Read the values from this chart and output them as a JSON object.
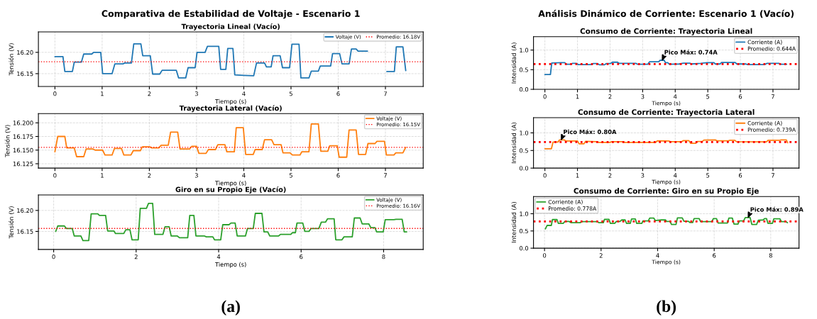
{
  "chart_data": [
    {
      "type": "line",
      "title": "Trayectoria Lineal (Vacío)",
      "xlabel": "Tiempo (s)",
      "ylabel": "Tensión (V)",
      "xlim": [
        -0.35,
        7.8
      ],
      "ylim": [
        16.12,
        16.248
      ],
      "xticks": [
        0,
        1,
        2,
        3,
        4,
        5,
        6,
        7
      ],
      "yticks": [
        {
          "value": 16.15,
          "label": "16.15"
        },
        {
          "value": 16.2,
          "label": "16.20"
        }
      ],
      "grid": true,
      "legend": "top right",
      "annotations": [
        "Comparativa de Estabilidad de Voltaje - Escenario 1",
        "(a)"
      ],
      "ref_lines": [
        {
          "axis": "y",
          "value": 16.178,
          "label": "Promedio: 16.18V",
          "color": "#ff0000",
          "line_style": "dotted"
        }
      ],
      "series": [
        {
          "name": "Voltaje (V)",
          "color": "#1f77b4",
          "x": [
            0,
            0.17,
            0.21,
            0.37,
            0.41,
            0.56,
            0.61,
            0.78,
            0.82,
            0.97,
            1.01,
            1.21,
            1.27,
            1.44,
            1.48,
            1.62,
            1.67,
            1.82,
            1.86,
            2.02,
            2.07,
            2.22,
            2.27,
            2.57,
            2.62,
            2.77,
            2.82,
            2.97,
            3.01,
            3.18,
            3.23,
            3.47,
            3.51,
            3.62,
            3.66,
            3.77,
            3.81,
            4.0,
            4.21,
            4.27,
            4.44,
            4.48,
            4.58,
            4.62,
            4.77,
            4.82,
            4.97,
            5.02,
            5.17,
            5.21,
            5.38,
            5.43,
            5.58,
            5.62,
            5.84,
            5.88,
            6.03,
            6.08,
            6.23,
            6.28,
            6.38,
            6.42,
            6.62,
            6.66,
            6.98,
            7.03,
            7.19,
            7.23,
            7.37,
            7.43
          ],
          "values": [
            16.19,
            16.19,
            16.155,
            16.155,
            16.177,
            16.177,
            16.196,
            16.196,
            16.2,
            16.2,
            16.15,
            16.15,
            16.173,
            16.173,
            16.175,
            16.175,
            16.22,
            16.22,
            16.192,
            16.192,
            16.149,
            16.149,
            16.158,
            16.158,
            16.14,
            16.14,
            16.164,
            16.164,
            16.2,
            16.2,
            16.214,
            16.214,
            16.16,
            16.16,
            16.209,
            16.209,
            16.147,
            16.146,
            16.145,
            16.175,
            16.175,
            16.166,
            16.166,
            16.192,
            16.192,
            16.164,
            16.164,
            16.219,
            16.219,
            16.14,
            16.14,
            16.156,
            16.156,
            16.168,
            16.168,
            16.197,
            16.197,
            16.173,
            16.173,
            16.208,
            16.208,
            16.203,
            16.203,
            null,
            null,
            16.155,
            16.155,
            16.213,
            16.213,
            16.157
          ]
        }
      ]
    },
    {
      "type": "line",
      "title": "Trayectoria Lateral (Vacío)",
      "xlabel": "Tiempo (s)",
      "ylabel": "Tensión (V)",
      "xlim": [
        -0.35,
        7.8
      ],
      "ylim": [
        16.117,
        16.217
      ],
      "xticks": [
        0,
        1,
        2,
        3,
        4,
        5,
        6,
        7
      ],
      "yticks": [
        16.125,
        {
          "value": 16.15,
          "label": "16.150"
        },
        16.175,
        {
          "value": 16.2,
          "label": "16.200"
        }
      ],
      "grid": true,
      "legend": "top right",
      "ref_lines": [
        {
          "axis": "y",
          "value": 16.155,
          "label": "Promedio: 16.15V",
          "color": "#ff0000",
          "line_style": "dotted"
        }
      ],
      "series": [
        {
          "name": "Voltaje (V)",
          "color": "#ff7f0e",
          "x": [
            0,
            0.06,
            0.21,
            0.25,
            0.41,
            0.46,
            0.61,
            0.66,
            0.81,
            0.85,
            1.01,
            1.06,
            1.21,
            1.26,
            1.41,
            1.46,
            1.61,
            1.66,
            1.81,
            1.85,
            2.01,
            2.05,
            2.2,
            2.25,
            2.4,
            2.45,
            2.6,
            2.65,
            2.85,
            2.9,
            3.0,
            3.05,
            3.2,
            3.25,
            3.4,
            3.45,
            3.6,
            3.64,
            3.8,
            3.84,
            3.99,
            4.04,
            4.2,
            4.24,
            4.39,
            4.44,
            4.59,
            4.64,
            4.79,
            4.83,
            4.98,
            5.03,
            5.19,
            5.23,
            5.38,
            5.43,
            5.58,
            5.63,
            5.78,
            5.82,
            5.98,
            6.02,
            6.18,
            6.23,
            6.38,
            6.43,
            6.58,
            6.63,
            6.78,
            6.82,
            6.98,
            7.02,
            7.18,
            7.22,
            7.37,
            7.43
          ],
          "values": [
            16.147,
            16.175,
            16.175,
            16.154,
            16.154,
            16.138,
            16.138,
            16.152,
            16.152,
            16.15,
            16.15,
            16.141,
            16.141,
            16.153,
            16.153,
            16.141,
            16.141,
            16.149,
            16.149,
            16.156,
            16.156,
            16.154,
            16.154,
            16.159,
            16.159,
            16.183,
            16.183,
            16.152,
            16.152,
            16.157,
            16.157,
            16.144,
            16.144,
            16.151,
            16.151,
            16.16,
            16.16,
            16.147,
            16.147,
            16.191,
            16.191,
            16.142,
            16.142,
            16.151,
            16.151,
            16.169,
            16.169,
            16.16,
            16.16,
            16.145,
            16.145,
            16.141,
            16.141,
            16.147,
            16.147,
            16.198,
            16.198,
            16.148,
            16.148,
            16.158,
            16.158,
            16.137,
            16.137,
            16.187,
            16.187,
            16.142,
            16.142,
            16.162,
            16.162,
            16.166,
            16.166,
            16.141,
            16.141,
            16.145,
            16.145,
            16.155
          ]
        }
      ]
    },
    {
      "type": "line",
      "title": "Giro en su Propio Eje (Vacío)",
      "xlabel": "Tiempo (s)",
      "ylabel": "Tensión (V)",
      "xlim": [
        -0.37,
        8.96
      ],
      "ylim": [
        16.107,
        16.237
      ],
      "xticks": [
        0,
        2,
        4,
        6,
        8
      ],
      "yticks": [
        {
          "value": 16.15,
          "label": "16.15"
        },
        {
          "value": 16.2,
          "label": "16.20"
        }
      ],
      "grid": true,
      "legend": "top right",
      "ref_lines": [
        {
          "axis": "y",
          "value": 16.157,
          "label": "Promedio: 16.16V",
          "color": "#ff0000",
          "line_style": "dotted"
        }
      ],
      "series": [
        {
          "name": "Voltaje (V)",
          "color": "#2ca02c",
          "x": [
            0.05,
            0.1,
            0.26,
            0.31,
            0.45,
            0.5,
            0.66,
            0.71,
            0.85,
            0.91,
            1.07,
            1.11,
            1.26,
            1.31,
            1.46,
            1.5,
            1.7,
            1.75,
            1.85,
            1.9,
            2.05,
            2.1,
            2.25,
            2.3,
            2.4,
            2.45,
            2.65,
            2.7,
            2.8,
            2.85,
            3.0,
            3.05,
            3.25,
            3.3,
            3.4,
            3.45,
            3.66,
            3.7,
            3.86,
            3.9,
            4.05,
            4.1,
            4.25,
            4.3,
            4.4,
            4.45,
            4.65,
            4.7,
            4.84,
            4.89,
            5.05,
            5.1,
            5.19,
            5.24,
            5.45,
            5.5,
            5.75,
            5.79,
            5.86,
            5.9,
            6.04,
            6.09,
            6.19,
            6.24,
            6.43,
            6.49,
            6.59,
            6.64,
            6.8,
            6.84,
            6.99,
            7.04,
            7.24,
            7.29,
            7.43,
            7.48,
            7.64,
            7.69,
            7.79,
            7.83,
            7.99,
            8.04,
            8.25,
            8.3,
            8.45,
            8.5,
            8.56
          ],
          "values": [
            16.15,
            16.163,
            16.163,
            16.157,
            16.157,
            16.139,
            16.139,
            16.128,
            16.128,
            16.192,
            16.192,
            16.188,
            16.188,
            16.151,
            16.151,
            16.145,
            16.145,
            16.154,
            16.154,
            16.13,
            16.13,
            16.205,
            16.205,
            16.217,
            16.217,
            16.143,
            16.143,
            16.161,
            16.161,
            16.139,
            16.139,
            16.135,
            16.135,
            16.188,
            16.188,
            16.139,
            16.139,
            16.137,
            16.137,
            16.13,
            16.13,
            16.166,
            16.166,
            16.17,
            16.17,
            16.139,
            16.139,
            16.157,
            16.157,
            16.193,
            16.193,
            16.149,
            16.149,
            16.139,
            16.139,
            16.143,
            16.143,
            16.147,
            16.147,
            16.17,
            16.17,
            16.15,
            16.15,
            16.157,
            16.157,
            16.172,
            16.172,
            16.18,
            16.18,
            16.13,
            16.13,
            16.137,
            16.137,
            16.182,
            16.182,
            16.168,
            16.168,
            16.159,
            16.159,
            16.149,
            16.149,
            16.178,
            16.178,
            16.179,
            16.179,
            16.149,
            16.149
          ]
        }
      ]
    },
    {
      "type": "line",
      "title": "Consumo de Corriente: Trayectoria Lineal",
      "xlabel": "Tiempo (s)",
      "ylabel": "Intensidad (A)",
      "xlim": [
        -0.35,
        7.8
      ],
      "ylim": [
        0,
        1.34
      ],
      "xticks": [
        0,
        1,
        2,
        3,
        4,
        5,
        6,
        7
      ],
      "yticks": [
        {
          "value": 0,
          "label": "0.0"
        },
        {
          "value": 0.5,
          "label": "0.5"
        },
        {
          "value": 1,
          "label": "1.0"
        }
      ],
      "grid": true,
      "legend": "top right",
      "annotations": [
        "Análisis Dinámico de Corriente: Escenario 1 (Vacío)",
        "(b)",
        {
          "text": "Pico Máx: 0.74A",
          "x": 3.6,
          "y": 0.74
        }
      ],
      "ref_lines": [
        {
          "axis": "y",
          "value": 0.644,
          "label": "Promedio: 0.644A",
          "color": "#ff0000",
          "line_style": "dotted"
        }
      ],
      "series": [
        {
          "name": "Corriente (A)",
          "color": "#1f77b4",
          "x": [
            0,
            0.17,
            0.21,
            0.51,
            0.61,
            0.66,
            0.81,
            0.84,
            0.97,
            1.02,
            1.44,
            1.48,
            1.62,
            1.67,
            1.83,
            1.88,
            2.01,
            2.07,
            2.23,
            2.28,
            2.79,
            2.84,
            3.16,
            3.21,
            3.49,
            3.54,
            3.66,
            3.7,
            3.77,
            3.82,
            4.12,
            4.25,
            4.45,
            4.5,
            4.78,
            4.98,
            5.19,
            5.23,
            5.38,
            5.42,
            5.84,
            5.89,
            6.17,
            6.22,
            6.75,
            6.81,
            7.19,
            7.23,
            7.42
          ],
          "values": [
            0.375,
            0.375,
            0.67,
            0.68,
            0.68,
            0.64,
            0.64,
            0.66,
            0.66,
            0.63,
            0.63,
            0.655,
            0.655,
            0.625,
            0.625,
            0.655,
            0.655,
            0.69,
            0.69,
            0.66,
            0.66,
            0.64,
            0.64,
            0.7,
            0.7,
            0.74,
            0.74,
            0.68,
            0.68,
            0.64,
            0.645,
            0.665,
            0.665,
            0.645,
            0.66,
            0.68,
            0.68,
            0.645,
            0.645,
            0.685,
            0.685,
            0.645,
            0.645,
            0.63,
            0.63,
            0.66,
            0.66,
            0.64,
            0.64
          ]
        }
      ]
    },
    {
      "type": "line",
      "title": "Consumo de Corriente: Trayectoria Lateral",
      "xlabel": "Tiempo (s)",
      "ylabel": "Intensidad (A)",
      "xlim": [
        -0.35,
        7.8
      ],
      "ylim": [
        0,
        1.43
      ],
      "xticks": [
        0,
        1,
        2,
        3,
        4,
        5,
        6,
        7
      ],
      "yticks": [
        {
          "value": 0,
          "label": "0.0"
        },
        {
          "value": 0.5,
          "label": "0.5"
        },
        {
          "value": 1,
          "label": "1.0"
        }
      ],
      "grid": true,
      "legend": "top right",
      "annotations": [
        {
          "text": "Pico Máx: 0.80A",
          "x": 0.5,
          "y": 0.8
        }
      ],
      "ref_lines": [
        {
          "axis": "y",
          "value": 0.739,
          "label": "Promedio: 0.739A",
          "color": "#ff0000",
          "line_style": "dotted"
        }
      ],
      "series": [
        {
          "name": "Corriente (A)",
          "color": "#ff7f0e",
          "x": [
            0,
            0.2,
            0.25,
            0.4,
            0.45,
            0.59,
            0.64,
            1.0,
            1.05,
            1.2,
            1.25,
            1.6,
            1.65,
            2.0,
            2.05,
            2.4,
            2.45,
            3.4,
            3.45,
            3.8,
            3.85,
            4.2,
            4.25,
            4.42,
            4.47,
            4.63,
            4.68,
            4.83,
            4.88,
            5.23,
            5.28,
            5.63,
            5.68,
            5.83,
            5.88,
            6.8,
            6.85,
            7.21,
            7.25,
            7.41,
            7.45
          ],
          "values": [
            0.55,
            0.55,
            0.74,
            0.74,
            0.8,
            0.8,
            0.77,
            0.77,
            0.69,
            0.69,
            0.76,
            0.75,
            0.73,
            0.73,
            0.75,
            0.75,
            0.73,
            0.73,
            0.775,
            0.77,
            0.75,
            0.75,
            0.78,
            0.78,
            0.705,
            0.705,
            0.755,
            0.755,
            0.795,
            0.8,
            0.775,
            0.775,
            0.79,
            0.79,
            0.75,
            0.745,
            0.79,
            0.79,
            0.8,
            0.8,
            0.72
          ]
        }
      ]
    },
    {
      "type": "line",
      "title": "Consumo de Corriente: Giro en su Propio Eje",
      "xlabel": "Tiempo (s)",
      "ylabel": "Intensidad (A)",
      "xlim": [
        -0.39,
        9.0
      ],
      "ylim": [
        0,
        1.5
      ],
      "xticks": [
        0,
        2,
        4,
        6,
        8
      ],
      "yticks": [
        {
          "value": 0,
          "label": "0.0"
        },
        {
          "value": 0.5,
          "label": "0.5"
        },
        {
          "value": 1,
          "label": "1.0"
        }
      ],
      "grid": true,
      "legend": "top left",
      "annotations": [
        {
          "text": "Pico Máx: 0.89A",
          "x": 7.2,
          "y": 0.89
        }
      ],
      "ref_lines": [
        {
          "axis": "y",
          "value": 0.778,
          "label": "Promedio: 0.778A",
          "color": "#ff0000",
          "line_style": "dotted"
        }
      ],
      "series": [
        {
          "name": "Corriente (A)",
          "color": "#2ca02c",
          "x": [
            0.03,
            0.09,
            0.24,
            0.28,
            0.44,
            0.49,
            0.66,
            0.72,
            0.87,
            0.93,
            1.26,
            1.32,
            1.87,
            1.92,
            2.08,
            2.12,
            2.28,
            2.33,
            2.48,
            2.54,
            2.67,
            2.73,
            2.85,
            2.9,
            3.03,
            3.08,
            3.21,
            3.26,
            3.44,
            3.48,
            3.67,
            3.72,
            3.86,
            3.92,
            4.13,
            4.28,
            4.32,
            4.44,
            4.49,
            4.65,
            4.7,
            4.87,
            4.93,
            5.09,
            5.14,
            5.24,
            5.29,
            5.47,
            5.52,
            5.92,
            5.97,
            6.08,
            6.14,
            6.47,
            6.52,
            6.64,
            6.7,
            6.84,
            6.89,
            7.04,
            7.1,
            7.27,
            7.33,
            7.5,
            7.56,
            7.73,
            7.79,
            7.85,
            7.9,
            8.06,
            8.11,
            8.32,
            8.38,
            8.54,
            8.59
          ],
          "values": [
            0.56,
            0.66,
            0.66,
            0.83,
            0.83,
            0.72,
            0.72,
            0.775,
            0.775,
            0.74,
            0.74,
            0.77,
            0.77,
            0.74,
            0.74,
            0.835,
            0.835,
            0.72,
            0.72,
            0.775,
            0.775,
            0.82,
            0.82,
            0.72,
            0.72,
            0.85,
            0.85,
            0.72,
            0.72,
            0.79,
            0.79,
            0.875,
            0.875,
            0.8,
            0.82,
            0.82,
            0.775,
            0.775,
            0.69,
            0.69,
            0.88,
            0.88,
            0.78,
            0.78,
            0.745,
            0.745,
            0.86,
            0.86,
            0.77,
            0.77,
            0.86,
            0.86,
            0.73,
            0.73,
            0.875,
            0.875,
            0.7,
            0.7,
            0.79,
            0.79,
            0.89,
            0.89,
            0.69,
            0.69,
            0.81,
            0.82,
            0.86,
            0.86,
            0.72,
            0.72,
            0.855,
            0.855,
            0.77,
            0.77,
            0.74
          ]
        }
      ]
    }
  ]
}
